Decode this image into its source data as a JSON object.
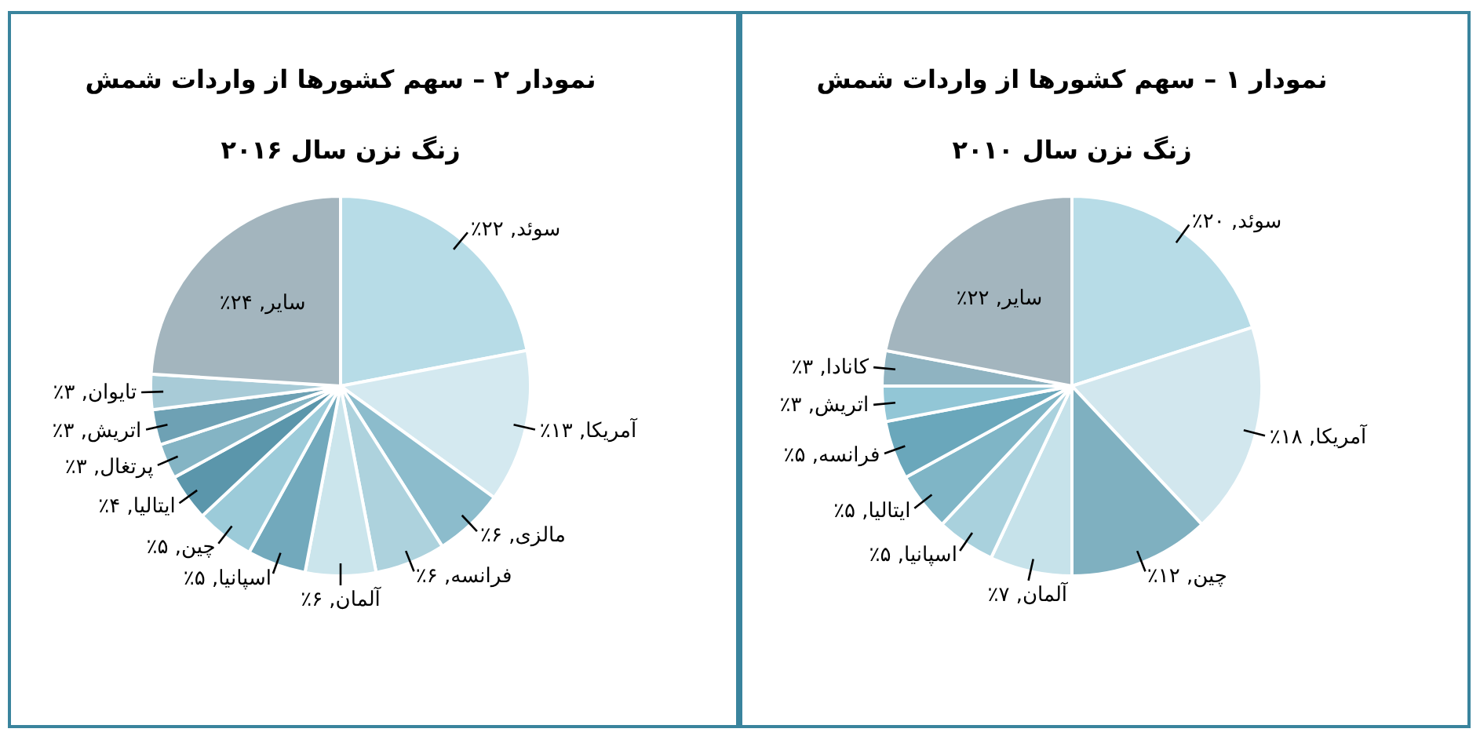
{
  "chart_data": [
    {
      "type": "pie",
      "title": "نمودار ۲ – سهم کشورها از واردات شمش",
      "subtitle": "زنگ نزن سال ۲۰۱۶",
      "categories": [
        "سوئد",
        "آمریکا",
        "مالزی",
        "فرانسه",
        "آلمان",
        "اسپانیا",
        "چین",
        "ایتالیا",
        "پرتغال",
        "اتریش",
        "تایوان",
        "سایر"
      ],
      "values": [
        22,
        13,
        6,
        6,
        6,
        5,
        5,
        4,
        3,
        3,
        3,
        24
      ],
      "value_labels": [
        "۲۲٪",
        "۱۳٪",
        "۶٪",
        "۶٪",
        "۶٪",
        "۵٪",
        "۵٪",
        "۴٪",
        "۳٪",
        "۳٪",
        "۳٪",
        "۲۴٪"
      ],
      "colors": [
        "#b7dce7",
        "#d4e9f0",
        "#8cbccc",
        "#add2dd",
        "#cbe5ec",
        "#72a9bc",
        "#9ccbd9",
        "#5b96ab",
        "#84b4c4",
        "#6ea1b4",
        "#a8cbd7",
        "#a3b5be"
      ]
    },
    {
      "type": "pie",
      "title": "نمودار ۱ – سهم کشورها از واردات شمش",
      "subtitle": "زنگ نزن سال ۲۰۱۰",
      "categories": [
        "سوئد",
        "آمریکا",
        "چین",
        "آلمان",
        "اسپانیا",
        "ایتالیا",
        "فرانسه",
        "اتریش",
        "کانادا",
        "سایر"
      ],
      "values": [
        20,
        18,
        12,
        7,
        5,
        5,
        5,
        3,
        3,
        22
      ],
      "value_labels": [
        "۲۰٪",
        "۱۸٪",
        "۱۲٪",
        "۷٪",
        "۵٪",
        "۵٪",
        "۵٪",
        "۳٪",
        "۳٪",
        "۲۲٪"
      ],
      "colors": [
        "#b7dce7",
        "#d2e7ee",
        "#7fb0c0",
        "#c6e2ea",
        "#a9d1dd",
        "#7fb5c6",
        "#6aa7bb",
        "#92c6d6",
        "#8fb3c1",
        "#a3b5be"
      ]
    }
  ]
}
